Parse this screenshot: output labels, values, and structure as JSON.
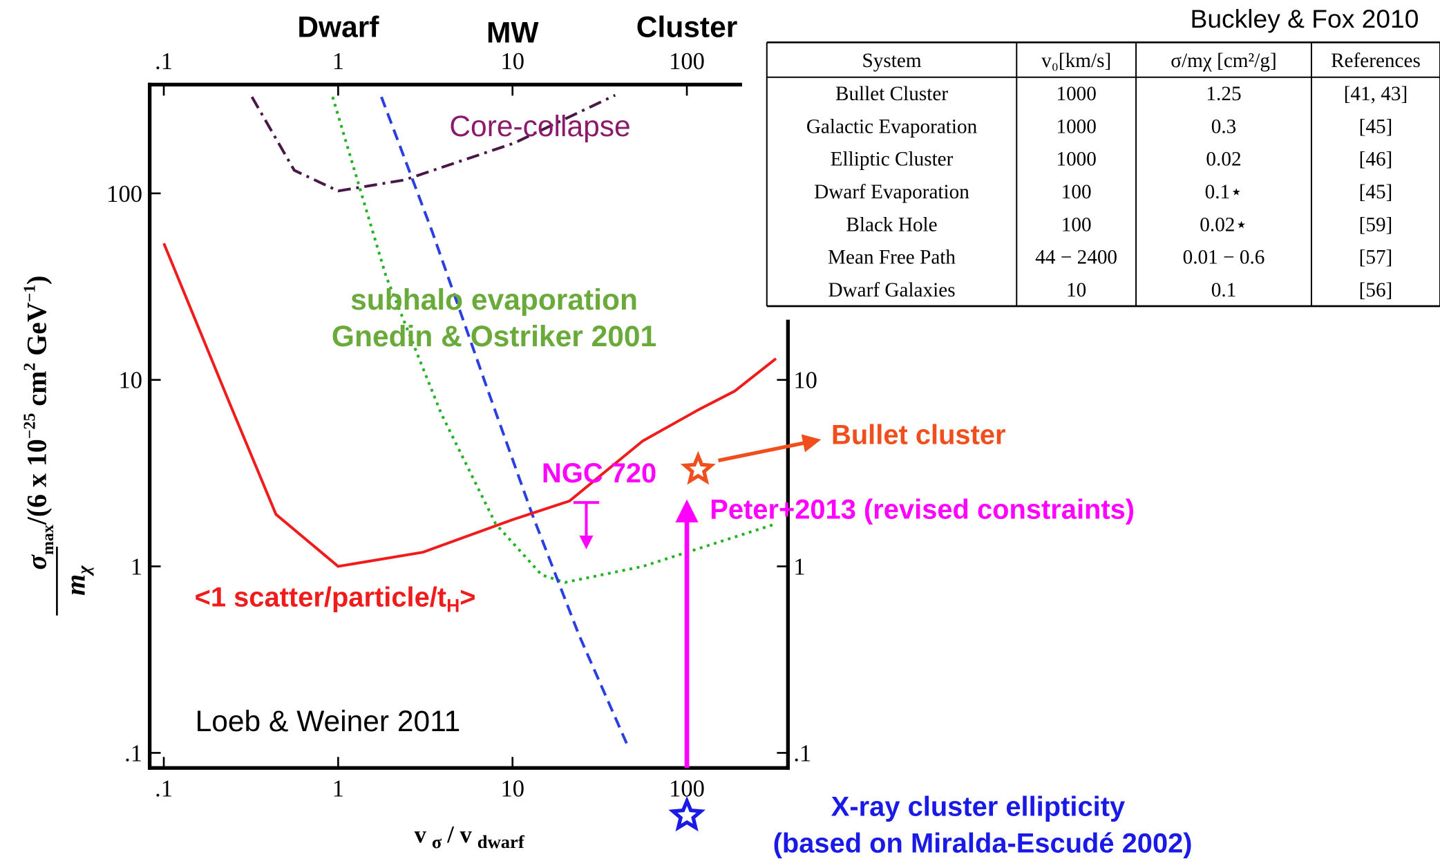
{
  "chart_data": {
    "type": "line",
    "xscale": "log",
    "yscale": "log",
    "xlim": [
      0.083,
      380
    ],
    "ylim": [
      0.083,
      383
    ],
    "xticks": [
      {
        "value": 0.1,
        "label": ".1"
      },
      1,
      10,
      100
    ],
    "yticks": [
      {
        "value": 0.1,
        "label": ".1"
      },
      1,
      10,
      100
    ],
    "y2lim": [
      0.083,
      383
    ],
    "y2ticks": [
      {
        "value": 0.1,
        "label": ".1"
      },
      1,
      10
    ],
    "top_categories": [
      {
        "value": 1,
        "label": "Dwarf"
      },
      {
        "value": 10,
        "label": "MW"
      },
      {
        "value": 100,
        "label": "Cluster"
      }
    ],
    "xlabel": {
      "v": "v",
      "sigma": "σ",
      "slash": "/ v",
      "dwarf": "dwarf"
    },
    "ylabel": {
      "sigma": "σ",
      "max": "max",
      "rest": "/(6 x 10",
      "exp": "−25",
      "unit": " cm",
      "two": "2",
      "gev": " GeV",
      "minus1": "−1",
      "close": ")",
      "m": "m",
      "chi": "χ"
    },
    "series": [
      {
        "name": "Core-collapse",
        "color": "#4a1848",
        "dash": "dashdot",
        "x": [
          0.32,
          0.56,
          1,
          2.4,
          10.2,
          38.8
        ],
        "y": [
          329,
          133,
          103,
          118,
          186,
          336
        ]
      },
      {
        "name": "subhalo evaporation",
        "color": "#22b322",
        "dash": "dotted",
        "x": [
          0.93,
          1.88,
          3.9,
          8.0,
          14.7,
          20,
          56,
          324
        ],
        "y": [
          329,
          36,
          6.6,
          1.69,
          0.9,
          0.82,
          1,
          1.69
        ]
      },
      {
        "name": "blue",
        "color": "#2a3fe0",
        "dash": "dashed",
        "x": [
          1.77,
          3.45,
          7.1,
          13,
          24,
          46.6
        ],
        "y": [
          329,
          63,
          9.2,
          1.89,
          0.43,
          0.105
        ]
      },
      {
        "name": "scatter",
        "color": "#f01c1c",
        "dash": "solid",
        "x": [
          0.1,
          0.24,
          0.44,
          1,
          3.05,
          10,
          21.2,
          55.8,
          116,
          188,
          324
        ],
        "y": [
          54,
          7.4,
          1.9,
          1,
          1.19,
          1.78,
          2.24,
          4.7,
          6.9,
          8.7,
          13
        ]
      }
    ],
    "annotations": {
      "core": "Core-collapse",
      "subhalo1": "subhalo evaporation",
      "subhalo2": "Gnedin & Ostriker 2001",
      "scatter": "<1 scatter/particle/t",
      "scatter_sub": "H",
      "scatter_end": ">",
      "loeb": "Loeb & Weiner 2011",
      "xray1": "X-ray cluster ellipticity",
      "xray2": "(based on Miralda-Escudé 2002)"
    },
    "markers": [
      {
        "label": "NGC 720",
        "kind": "upper-limit",
        "color": "#ff00ff",
        "x": 26.5,
        "y": 2.2
      },
      {
        "label": "Peter+2013 (revised constraints)",
        "kind": "lower-arrow",
        "color": "#ff00ff",
        "x": 100,
        "y": 2.16
      },
      {
        "label": "Bullet cluster",
        "kind": "star",
        "color": "#f04e1c",
        "x": 116,
        "y": 3.3
      }
    ]
  },
  "table": {
    "caption": "Buckley & Fox 2010",
    "header": [
      "System",
      "v₀[km/s]",
      "σ/mχ [cm²/g]",
      "References"
    ],
    "rows": [
      [
        "Bullet Cluster",
        "1000",
        "1.25",
        "[41, 43]"
      ],
      [
        "Galactic Evaporation",
        "1000",
        "0.3",
        "[45]"
      ],
      [
        "Elliptic Cluster",
        "1000",
        "0.02",
        "[46]"
      ],
      [
        "Dwarf Evaporation",
        "100",
        "0.1⋆",
        "[45]"
      ],
      [
        "Black Hole",
        "100",
        "0.02⋆",
        "[59]"
      ],
      [
        "Mean Free Path",
        "44 − 2400",
        "0.01 − 0.6",
        "[57]"
      ],
      [
        "Dwarf Galaxies",
        "10",
        "0.1",
        "[56]"
      ]
    ]
  }
}
